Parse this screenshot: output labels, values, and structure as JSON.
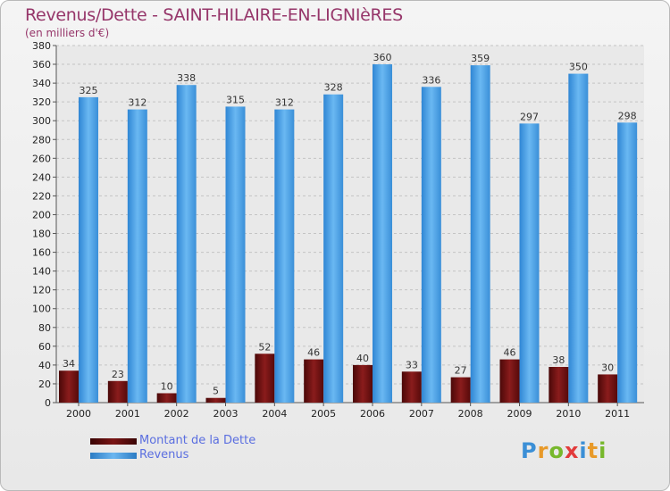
{
  "title": "Revenus/Dette - SAINT-HILAIRE-EN-LIGNIèRES",
  "subtitle": "(en milliers d'€)",
  "logo": "Proxiti",
  "colors": {
    "dette": "#6b0f0f",
    "revenus": "#4a9fe2",
    "title": "#96366a",
    "legend_text": "#5a6ee0"
  },
  "chart_data": {
    "type": "bar",
    "categories": [
      "2000",
      "2001",
      "2002",
      "2003",
      "2004",
      "2005",
      "2006",
      "2007",
      "2008",
      "2009",
      "2010",
      "2011"
    ],
    "series": [
      {
        "name": "Montant de la Dette",
        "values": [
          34,
          23,
          10,
          5,
          52,
          46,
          40,
          33,
          27,
          46,
          38,
          30
        ]
      },
      {
        "name": "Revenus",
        "values": [
          325,
          312,
          338,
          315,
          312,
          328,
          360,
          336,
          359,
          297,
          350,
          298
        ]
      }
    ],
    "yticks": [
      0,
      20,
      40,
      60,
      80,
      100,
      120,
      140,
      160,
      180,
      200,
      220,
      240,
      260,
      280,
      300,
      320,
      340,
      360,
      380
    ],
    "ylim": [
      0,
      380
    ],
    "grid": "horizontal dashed",
    "legend_position": "bottom-left"
  }
}
